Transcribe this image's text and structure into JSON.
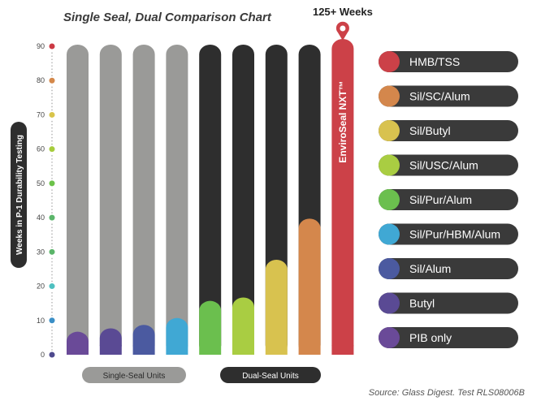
{
  "chart_data": {
    "type": "bar",
    "title": "Single Seal, Dual Comparison Chart",
    "ylabel": "Weeks in P-1 Durability Testing",
    "ylim": [
      0,
      90
    ],
    "yticks": [
      0,
      10,
      20,
      30,
      40,
      50,
      60,
      70,
      80,
      90
    ],
    "tick_colors": [
      "#4e4a8e",
      "#3b8fc6",
      "#4ec0c0",
      "#5bb56a",
      "#5bb56a",
      "#6cc24a",
      "#a6cc3c",
      "#d8c44a",
      "#d4884a",
      "#cc3a44"
    ],
    "groups": [
      {
        "label": "Single-Seal Units",
        "style": "light"
      },
      {
        "label": "Dual-Seal Units",
        "style": "dark"
      }
    ],
    "series": [
      {
        "name": "HMB/TSS",
        "color": "#cc4148"
      },
      {
        "name": "Sil/SC/Alum",
        "color": "#d4874c"
      },
      {
        "name": "Sil/Butyl",
        "color": "#d8c24f"
      },
      {
        "name": "Sil/USC/Alum",
        "color": "#a9cd42"
      },
      {
        "name": "Sil/Pur/Alum",
        "color": "#6bbf4e"
      },
      {
        "name": "Sil/Pur/HBM/Alum",
        "color": "#40a8d4"
      },
      {
        "name": "Sil/Alum",
        "color": "#4b5aa0"
      },
      {
        "name": "Butyl",
        "color": "#5a4a94"
      },
      {
        "name": "PIB only",
        "color": "#6a4a98"
      }
    ],
    "bars": [
      {
        "group": "single",
        "value": 6,
        "series": "PIB only"
      },
      {
        "group": "single",
        "value": 7,
        "series": "Butyl"
      },
      {
        "group": "single",
        "value": 8,
        "series": "Sil/Alum"
      },
      {
        "group": "single",
        "value": 10,
        "series": "Sil/Pur/HBM/Alum"
      },
      {
        "group": "dual",
        "value": 15,
        "series": "Sil/Pur/Alum"
      },
      {
        "group": "dual",
        "value": 16,
        "series": "Sil/USC/Alum"
      },
      {
        "group": "dual",
        "value": 27,
        "series": "Sil/Butyl"
      },
      {
        "group": "dual",
        "value": 39,
        "series": "Sil/SC/Alum"
      },
      {
        "group": "dual",
        "value": 90,
        "series": "HMB/TSS",
        "label": "EnviroSeal NXT™",
        "note": "125+ Weeks"
      }
    ],
    "source": "Source: Glass Digest. Test RLS08006B"
  }
}
